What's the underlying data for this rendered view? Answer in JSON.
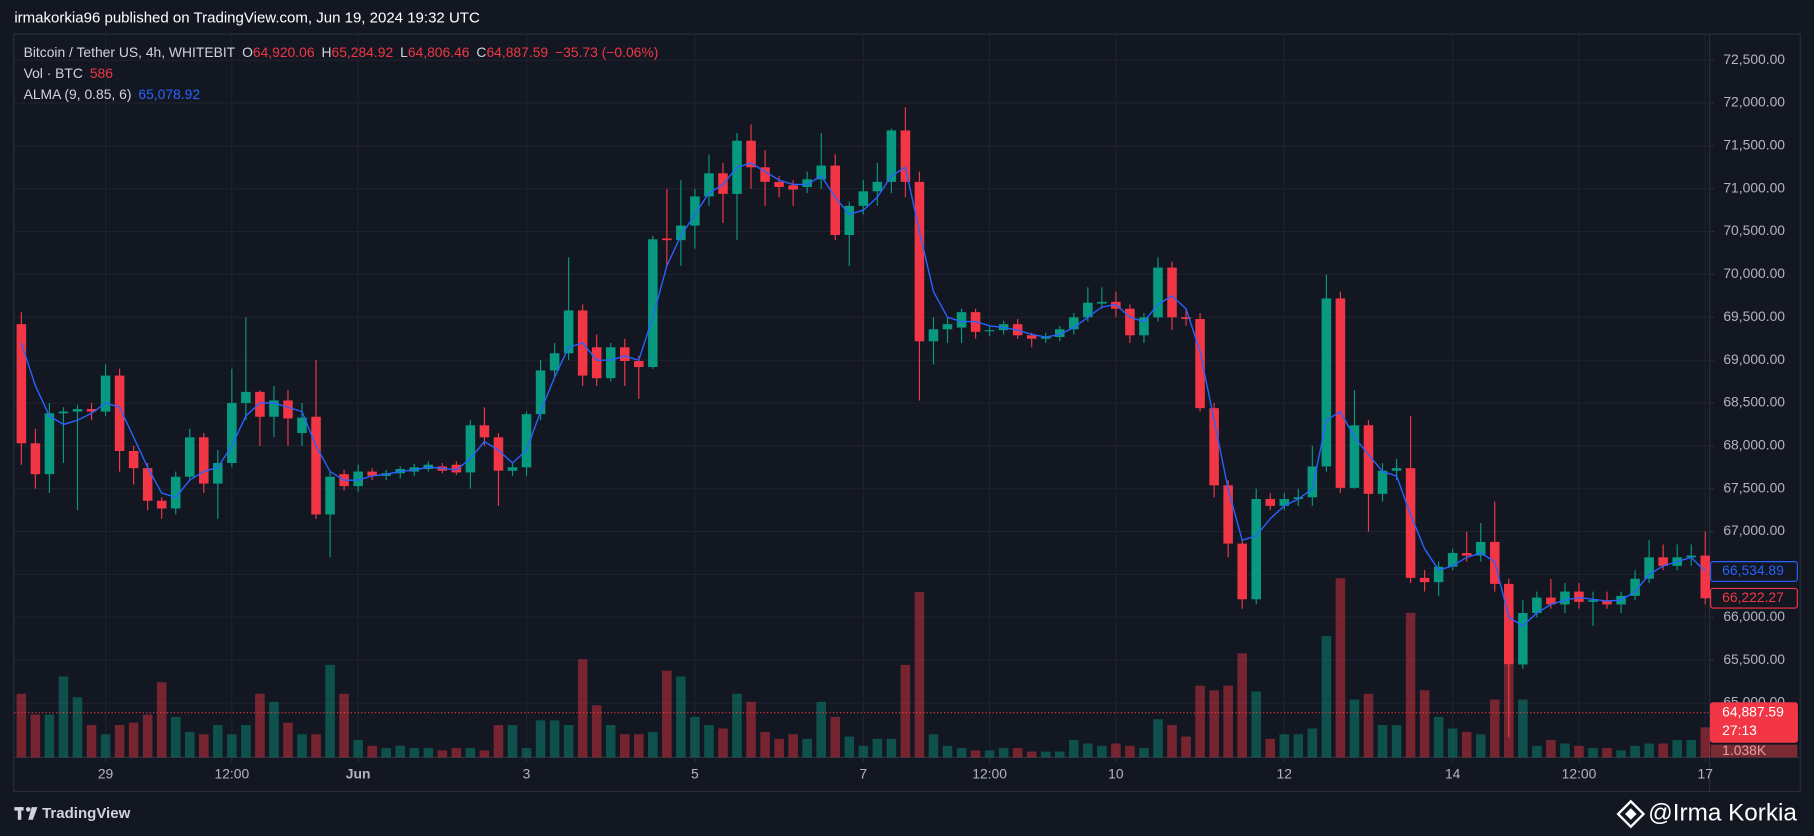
{
  "header": {
    "publisher": "irmakorkia96 published on TradingView.com, Jun 19, 2024 19:32 UTC"
  },
  "chart_data": {
    "type": "candlestick",
    "legend": {
      "symbol": "Bitcoin / Tether US, 4h, WHITEBIT",
      "ohlc": [
        {
          "label": "O",
          "value": "64,920.06"
        },
        {
          "label": "H",
          "value": "65,284.92"
        },
        {
          "label": "L",
          "value": "64,806.46"
        },
        {
          "label": "C",
          "value": "64,887.59"
        }
      ],
      "change": "−35.73 (−0.06%)",
      "volume_name": "Vol · BTC",
      "volume_value": "586",
      "alma_name": "ALMA (9, 0.85, 6)",
      "alma_value": "65,078.92"
    },
    "up_color": "#089981",
    "down_color": "#f23645",
    "open": [
      69420,
      68030,
      67670,
      68380,
      68400,
      68430,
      68400,
      68820,
      67940,
      67740,
      67360,
      67270,
      67640,
      68100,
      67560,
      67800,
      68500,
      68630,
      68340,
      68530,
      68150,
      68340,
      67200,
      67670,
      67530,
      67700,
      67650,
      67680,
      67700,
      67730,
      67760,
      67780,
      67690,
      68240,
      68100,
      67710,
      67750,
      68370,
      68880,
      69080,
      69580,
      69150,
      68790,
      69150,
      68990,
      68920,
      70420,
      70400,
      70570,
      70910,
      71180,
      70940,
      71560,
      71250,
      71080,
      71040,
      71020,
      71110,
      71270,
      70460,
      70800,
      70970,
      71080,
      71680,
      71080,
      69220,
      69360,
      69380,
      69560,
      69340,
      69350,
      69420,
      69290,
      69250,
      69270,
      69360,
      69500,
      69660,
      69680,
      69600,
      69290,
      69500,
      70080,
      69500,
      69480,
      68440,
      67540,
      66860,
      66210,
      67380,
      67300,
      67380,
      67400,
      67760,
      69720,
      67510,
      68240,
      67440,
      67710,
      67740,
      66460,
      66410,
      66590,
      66750,
      66720,
      66880,
      66390,
      65450,
      66050,
      66230,
      66150,
      66300,
      66180,
      66200,
      66150,
      66250,
      66450,
      66700,
      66600,
      66700,
      66720
    ],
    "high": [
      69560,
      68200,
      68500,
      68450,
      68480,
      68500,
      68950,
      68900,
      68000,
      67800,
      67400,
      67700,
      68200,
      68150,
      67950,
      68900,
      69500,
      68650,
      68700,
      68650,
      68500,
      69000,
      67700,
      67720,
      67780,
      67740,
      67720,
      67760,
      67790,
      67820,
      67800,
      67820,
      68300,
      68450,
      68150,
      67800,
      68400,
      69000,
      69200,
      70200,
      69650,
      69300,
      69200,
      69250,
      69050,
      70450,
      71000,
      71100,
      71000,
      71400,
      71300,
      71650,
      71750,
      71450,
      71150,
      71100,
      71200,
      71650,
      71400,
      70850,
      71100,
      71300,
      71700,
      71950,
      71200,
      69500,
      69500,
      69600,
      69600,
      69400,
      69460,
      69480,
      69320,
      69320,
      69400,
      69550,
      69850,
      69850,
      69800,
      69650,
      69550,
      70200,
      70150,
      69600,
      69550,
      68500,
      67600,
      66900,
      67500,
      67450,
      67450,
      67500,
      68000,
      70000,
      69800,
      68650,
      68300,
      67800,
      67850,
      68350,
      66550,
      66650,
      66800,
      67000,
      67100,
      67350,
      66450,
      66200,
      66300,
      66450,
      66400,
      66400,
      66300,
      66300,
      66300,
      66550,
      66900,
      66850,
      66850,
      66850,
      67000
    ],
    "low": [
      67780,
      67500,
      67450,
      67800,
      67250,
      68300,
      68350,
      67700,
      67550,
      67250,
      67150,
      67200,
      67600,
      67450,
      67150,
      67750,
      68300,
      68000,
      68100,
      68000,
      68000,
      67150,
      66700,
      67480,
      67460,
      67600,
      67600,
      67620,
      67650,
      67700,
      67680,
      67660,
      67500,
      68000,
      67300,
      67650,
      67650,
      68300,
      68800,
      69000,
      68700,
      68700,
      68750,
      68700,
      68550,
      68900,
      70100,
      70100,
      70300,
      70800,
      70600,
      70400,
      71000,
      70800,
      70900,
      70800,
      70950,
      71000,
      70400,
      70100,
      70700,
      70800,
      70950,
      70900,
      68530,
      68950,
      69200,
      69200,
      69250,
      69280,
      69300,
      69250,
      69150,
      69200,
      69220,
      69300,
      69450,
      69600,
      69500,
      69200,
      69200,
      69450,
      69350,
      69400,
      68400,
      67400,
      66700,
      66100,
      66150,
      67250,
      67250,
      67300,
      67300,
      67700,
      67450,
      67500,
      67000,
      67350,
      67600,
      66400,
      66300,
      66250,
      66550,
      66650,
      66650,
      66300,
      64600,
      65400,
      66000,
      66100,
      66050,
      66100,
      65900,
      66100,
      66050,
      66200,
      66400,
      66550,
      66550,
      66600,
      66150
    ],
    "close": [
      68030,
      67670,
      68380,
      68400,
      68430,
      68400,
      68820,
      67940,
      67740,
      67360,
      67270,
      67640,
      68100,
      67560,
      67800,
      68500,
      68630,
      68340,
      68530,
      68320,
      68330,
      67200,
      67640,
      67530,
      67700,
      67650,
      67680,
      67730,
      67750,
      67780,
      67710,
      67690,
      68240,
      68100,
      67710,
      67750,
      68370,
      68880,
      69080,
      69580,
      68820,
      68790,
      69150,
      68990,
      68920,
      70410,
      70400,
      70570,
      70910,
      71180,
      70940,
      71560,
      71250,
      71080,
      71020,
      70990,
      71110,
      71270,
      70460,
      70800,
      70970,
      71080,
      71680,
      71080,
      69220,
      69360,
      69420,
      69560,
      69330,
      69350,
      69420,
      69290,
      69250,
      69270,
      69360,
      69500,
      69670,
      69680,
      69600,
      69290,
      69500,
      70080,
      69500,
      69480,
      68440,
      67540,
      66860,
      66210,
      67380,
      67300,
      67380,
      67400,
      67760,
      69720,
      67510,
      68240,
      67440,
      67710,
      67740,
      66460,
      66410,
      66590,
      66750,
      66720,
      66880,
      66390,
      65450,
      66050,
      66230,
      66150,
      66300,
      66180,
      66200,
      66150,
      66250,
      66450,
      66700,
      66600,
      66700,
      66720,
      66222.27
    ],
    "volume": [
      2200,
      1480,
      1480,
      2800,
      2080,
      1120,
      800,
      1120,
      1200,
      1480,
      2600,
      1400,
      880,
      800,
      1120,
      800,
      1120,
      2200,
      1920,
      1200,
      800,
      800,
      3200,
      2200,
      600,
      400,
      320,
      400,
      320,
      320,
      240,
      320,
      320,
      240,
      1120,
      1120,
      320,
      1280,
      1280,
      1120,
      3400,
      1800,
      1120,
      800,
      800,
      880,
      3000,
      2800,
      1400,
      1120,
      1000,
      2200,
      1920,
      880,
      640,
      800,
      640,
      1920,
      1400,
      720,
      400,
      640,
      640,
      3200,
      5720,
      800,
      400,
      320,
      240,
      240,
      320,
      320,
      200,
      200,
      200,
      600,
      480,
      400,
      480,
      400,
      320,
      1320,
      1120,
      720,
      2480,
      2320,
      2480,
      3600,
      2280,
      640,
      800,
      800,
      1000,
      4200,
      6200,
      2000,
      2200,
      1120,
      1120,
      5000,
      2320,
      1400,
      1000,
      880,
      800,
      2000,
      3200,
      2000,
      400,
      600,
      480,
      400,
      320,
      320,
      240,
      400,
      480,
      480,
      600,
      600,
      1038
    ],
    "volume_lim": [
      0,
      8000
    ],
    "alma": {
      "color": "#2962ff",
      "values": [
        69200,
        68700,
        68350,
        68250,
        68300,
        68380,
        68500,
        68450,
        68100,
        67750,
        67450,
        67400,
        67600,
        67700,
        67750,
        68000,
        68350,
        68500,
        68500,
        68450,
        68400,
        68000,
        67700,
        67600,
        67600,
        67650,
        67670,
        67700,
        67720,
        67750,
        67740,
        67720,
        67850,
        68050,
        67950,
        67800,
        67950,
        68400,
        68800,
        69150,
        69200,
        69000,
        69000,
        69050,
        69000,
        69500,
        70100,
        70450,
        70700,
        70950,
        71050,
        71250,
        71300,
        71200,
        71100,
        71050,
        71050,
        71150,
        70900,
        70700,
        70750,
        70900,
        71150,
        71250,
        70500,
        69800,
        69500,
        69450,
        69450,
        69400,
        69380,
        69350,
        69300,
        69270,
        69300,
        69380,
        69500,
        69620,
        69650,
        69500,
        69450,
        69650,
        69750,
        69600,
        69100,
        68300,
        67500,
        66900,
        66950,
        67150,
        67300,
        67380,
        67500,
        68300,
        68400,
        68100,
        67900,
        67700,
        67650,
        67200,
        66800,
        66550,
        66600,
        66700,
        66750,
        66650,
        66000,
        65900,
        66050,
        66150,
        66200,
        66230,
        66210,
        66190,
        66200,
        66300,
        66500,
        66600,
        66650,
        66700,
        66534.89
      ]
    },
    "xlim": [
      -0.5,
      120.3
    ],
    "xticks": [
      {
        "value": 6,
        "label": "29"
      },
      {
        "value": 15,
        "label": "12:00"
      },
      {
        "value": 24,
        "label": "Jun"
      },
      {
        "value": 36,
        "label": "3"
      },
      {
        "value": 48,
        "label": "5"
      },
      {
        "value": 60,
        "label": "7"
      },
      {
        "value": 69,
        "label": "12:00"
      },
      {
        "value": 78,
        "label": "10"
      },
      {
        "value": 90,
        "label": "12"
      },
      {
        "value": 102,
        "label": "14"
      },
      {
        "value": 111,
        "label": "12:00"
      },
      {
        "value": 120,
        "label": "17"
      }
    ],
    "ylim": [
      64366,
      72797
    ],
    "yticks": [
      {
        "value": 65000,
        "label": "65,000.00"
      },
      {
        "value": 65500,
        "label": "65,500.00"
      },
      {
        "value": 66000,
        "label": "66,000.00"
      },
      {
        "value": 66500,
        "label": "66,500.00"
      },
      {
        "value": 67000,
        "label": "67,000.00"
      },
      {
        "value": 67500,
        "label": "67,500.00"
      },
      {
        "value": 68000,
        "label": "68,000.00"
      },
      {
        "value": 68500,
        "label": "68,500.00"
      },
      {
        "value": 69000,
        "label": "69,000.00"
      },
      {
        "value": 69500,
        "label": "69,500.00"
      },
      {
        "value": 70000,
        "label": "70,000.00"
      },
      {
        "value": 70500,
        "label": "70,500.00"
      },
      {
        "value": 71000,
        "label": "71,000.00"
      },
      {
        "value": 71500,
        "label": "71,500.00"
      },
      {
        "value": 72000,
        "label": "72,000.00"
      },
      {
        "value": 72500,
        "label": "72,500.00"
      }
    ],
    "grid": true,
    "price_tags": [
      {
        "value": 66534.89,
        "label": "66,534.89",
        "color": "#2962ff",
        "style": "outline"
      },
      {
        "value": 66222.27,
        "label": "66,222.27",
        "color": "#f23645",
        "style": "outline"
      },
      {
        "value": 64887.59,
        "label": "64,887.59",
        "color": "#f23645",
        "style": "filled",
        "countdown": "27:13"
      }
    ],
    "volume_tag": "1.038K"
  },
  "footer": {
    "brand": "TradingView",
    "watermark": "@Irma Korkia"
  }
}
